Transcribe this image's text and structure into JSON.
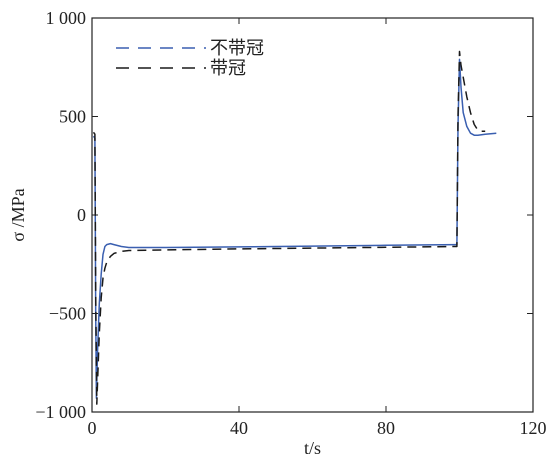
{
  "chart_data": {
    "type": "line",
    "title": "",
    "xlabel": "t/s",
    "ylabel": "σ /MPa",
    "xlim": [
      0,
      120
    ],
    "ylim": [
      -1000,
      1000
    ],
    "xticks": [
      0,
      40,
      80,
      120
    ],
    "xtick_labels": [
      "0",
      "40",
      "80",
      "120"
    ],
    "yticks": [
      1000,
      500,
      0,
      -500,
      -1000
    ],
    "ytick_labels": [
      "1 000",
      "500",
      "0",
      "−500",
      "−1 000"
    ],
    "grid": false,
    "legend_position": "top-left",
    "series": [
      {
        "name": "不带冠",
        "color": "#3a5fb0",
        "dash": "solid",
        "legend_dash": "dashed",
        "points": [
          [
            0.4,
            400
          ],
          [
            0.8,
            390
          ],
          [
            1.0,
            -500
          ],
          [
            1.2,
            -930
          ],
          [
            1.5,
            -700
          ],
          [
            2.0,
            -450
          ],
          [
            2.5,
            -300
          ],
          [
            3.0,
            -200
          ],
          [
            3.5,
            -160
          ],
          [
            4.0,
            -150
          ],
          [
            5.0,
            -145
          ],
          [
            6.0,
            -150
          ],
          [
            8.0,
            -160
          ],
          [
            10.0,
            -165
          ],
          [
            20.0,
            -165
          ],
          [
            40.0,
            -162
          ],
          [
            60.0,
            -158
          ],
          [
            80.0,
            -154
          ],
          [
            99.0,
            -150
          ],
          [
            99.3,
            -150
          ],
          [
            99.6,
            450
          ],
          [
            100.0,
            790
          ],
          [
            100.4,
            650
          ],
          [
            101.0,
            520
          ],
          [
            102.0,
            450
          ],
          [
            103.0,
            415
          ],
          [
            104.0,
            405
          ],
          [
            105.0,
            405
          ],
          [
            107.0,
            410
          ],
          [
            110.0,
            415
          ]
        ]
      },
      {
        "name": "带冠",
        "color": "#1a1a1a",
        "dash": "dashed",
        "legend_dash": "dashed",
        "points": [
          [
            0.4,
            420
          ],
          [
            0.8,
            410
          ],
          [
            1.0,
            -400
          ],
          [
            1.3,
            -960
          ],
          [
            1.6,
            -800
          ],
          [
            2.0,
            -600
          ],
          [
            2.5,
            -420
          ],
          [
            3.0,
            -320
          ],
          [
            3.5,
            -270
          ],
          [
            4.0,
            -240
          ],
          [
            5.0,
            -210
          ],
          [
            6.0,
            -195
          ],
          [
            8.0,
            -185
          ],
          [
            10.0,
            -180
          ],
          [
            20.0,
            -177
          ],
          [
            40.0,
            -172
          ],
          [
            60.0,
            -168
          ],
          [
            80.0,
            -164
          ],
          [
            99.0,
            -160
          ],
          [
            99.3,
            -160
          ],
          [
            99.6,
            500
          ],
          [
            100.0,
            830
          ],
          [
            100.4,
            760
          ],
          [
            101.0,
            700
          ],
          [
            102.0,
            600
          ],
          [
            103.0,
            520
          ],
          [
            104.0,
            460
          ],
          [
            105.0,
            430
          ],
          [
            106.0,
            425
          ],
          [
            107.0,
            425
          ]
        ]
      }
    ]
  }
}
